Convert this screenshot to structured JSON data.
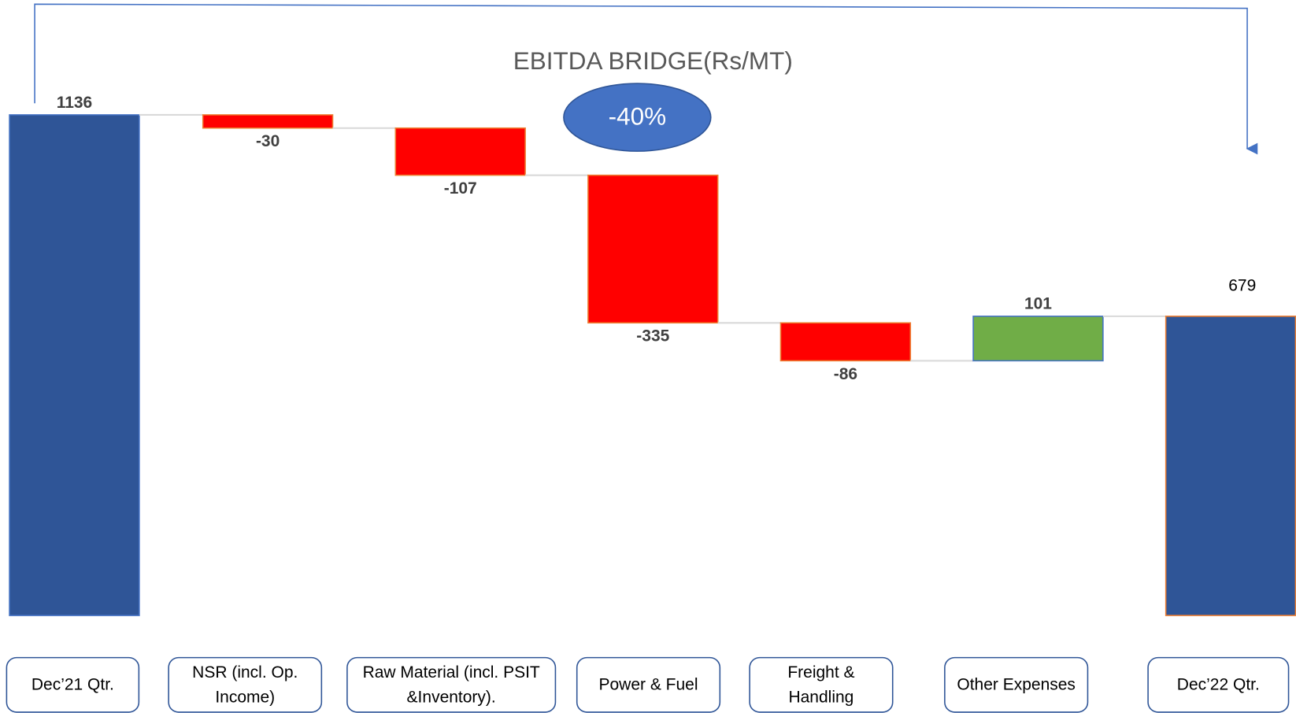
{
  "chart_data": {
    "type": "waterfall",
    "title": "EBITDA BRIDGE(Rs/MT)",
    "annotation": "-40%",
    "categories": [
      "Dec’21 Qtr.",
      "NSR (incl. Op. Income)",
      "Raw Material (incl. PSIT &Inventory).",
      "Power & Fuel",
      "Freight & Handling",
      "Other Expenses",
      "Dec’22 Qtr."
    ],
    "values": [
      1136,
      -30,
      -107,
      -335,
      -86,
      101,
      679
    ],
    "colors": {
      "total": "#2f5597",
      "decrease": "#ff0000",
      "increase": "#70ad47"
    }
  }
}
